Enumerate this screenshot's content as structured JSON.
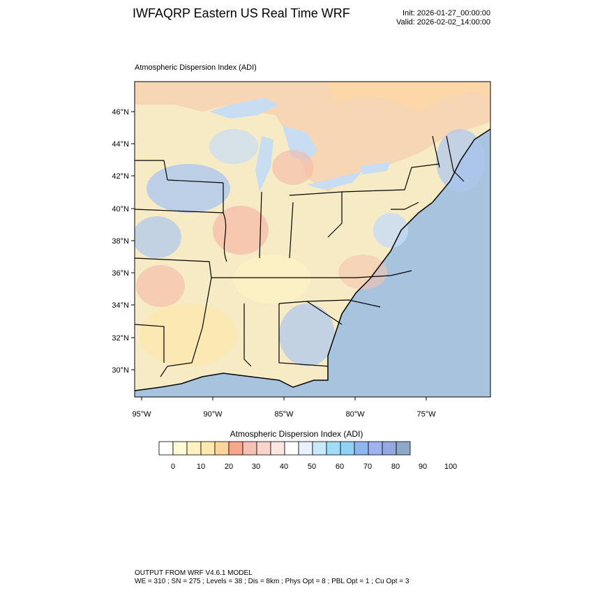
{
  "header": {
    "title": "IWFAQRP Eastern US Real Time WRF",
    "init": "Init: 2026-01-27_00:00:00",
    "valid": "Valid: 2026-02-02_14:00:00"
  },
  "panel": {
    "title": "Atmospheric Dispersion Index   (ADI)"
  },
  "axes": {
    "lat_labels": [
      "46°N",
      "44°N",
      "42°N",
      "40°N",
      "38°N",
      "36°N",
      "34°N",
      "32°N",
      "30°N"
    ],
    "lon_labels": [
      "95°W",
      "90°W",
      "85°W",
      "80°W",
      "75°W"
    ]
  },
  "colorbar": {
    "title": "Atmospheric Dispersion Index  (ADI)",
    "ticks": [
      "0",
      "10",
      "20",
      "30",
      "40",
      "50",
      "60",
      "70",
      "80",
      "90",
      "100"
    ],
    "colors": [
      "#ffffff",
      "#fffbd6",
      "#fff0c2",
      "#fde9b0",
      "#fbd59a",
      "#f7a68b",
      "#f6c0b4",
      "#f9d4cc",
      "#fce6e2",
      "#ffffff",
      "#eaf0ff",
      "#c8e8fb",
      "#9fdcf6",
      "#8fd2f3",
      "#8eb5ee",
      "#a1b3ee",
      "#95a8e0",
      "#8ea8c8"
    ]
  },
  "map": {
    "ocean_color": "#a7c3dd",
    "land_colors": [
      "#fde9b0",
      "#f7c5b0",
      "#f9d0c0",
      "#fbe0b0",
      "#c8dcf6",
      "#aec8ef",
      "#fff3c6",
      "#f5b9a6"
    ]
  },
  "footer": {
    "line1": "OUTPUT FROM WRF V4.6.1 MODEL",
    "line2": "WE = 310 ; SN = 275 ; Levels = 38 ; Dis = 8km ; Phys Opt = 8 ; PBL Opt = 1 ; Cu Opt = 3"
  }
}
